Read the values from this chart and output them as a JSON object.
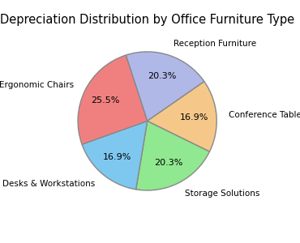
{
  "title": "Depreciation Distribution by Office Furniture Type",
  "labels": [
    "Reception Furniture",
    "Conference Tables",
    "Storage Solutions",
    "Desks & Workstations",
    "Ergonomic Chairs"
  ],
  "values": [
    20.3,
    16.9,
    20.3,
    16.9,
    25.4
  ],
  "colors": [
    "#b0b8e8",
    "#f5c88a",
    "#90e890",
    "#7ec8f0",
    "#f08080"
  ],
  "startangle": 108,
  "pctdistance": 0.68,
  "labeldistance": 1.18,
  "wedge_linewidth": 1.0,
  "wedge_edgecolor": "#888888",
  "title_fontsize": 10.5,
  "label_fontsize": 7.5,
  "pct_fontsize": 8
}
